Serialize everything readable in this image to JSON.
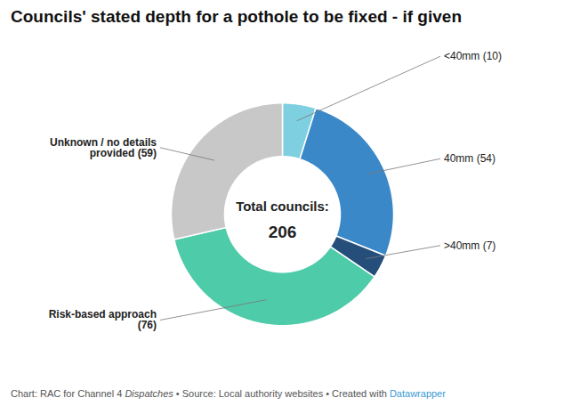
{
  "chart_data": {
    "type": "donut",
    "title": "Councils' stated depth for a pothole to be fixed - if given",
    "categories": [
      "<40mm (10)",
      "40mm (54)",
      ">40mm (7)",
      "Risk-based approach\n(76)",
      "Unknown / no details\nprovided (59)"
    ],
    "values": [
      10,
      54,
      7,
      76,
      59
    ],
    "colors": [
      "#7ecfe0",
      "#3a88c8",
      "#254f7a",
      "#4ecba9",
      "#c8c8c8"
    ],
    "annotations": [
      "Total councils:",
      "206"
    ],
    "caption": [
      {
        "text": "Chart: RAC for Channel 4 "
      },
      {
        "text": "Dispatches",
        "style": "italic"
      },
      {
        "text": " • Source: Local authority websites • Created with "
      },
      {
        "text": "Datawrapper",
        "color": "#3a9ad4"
      }
    ]
  }
}
